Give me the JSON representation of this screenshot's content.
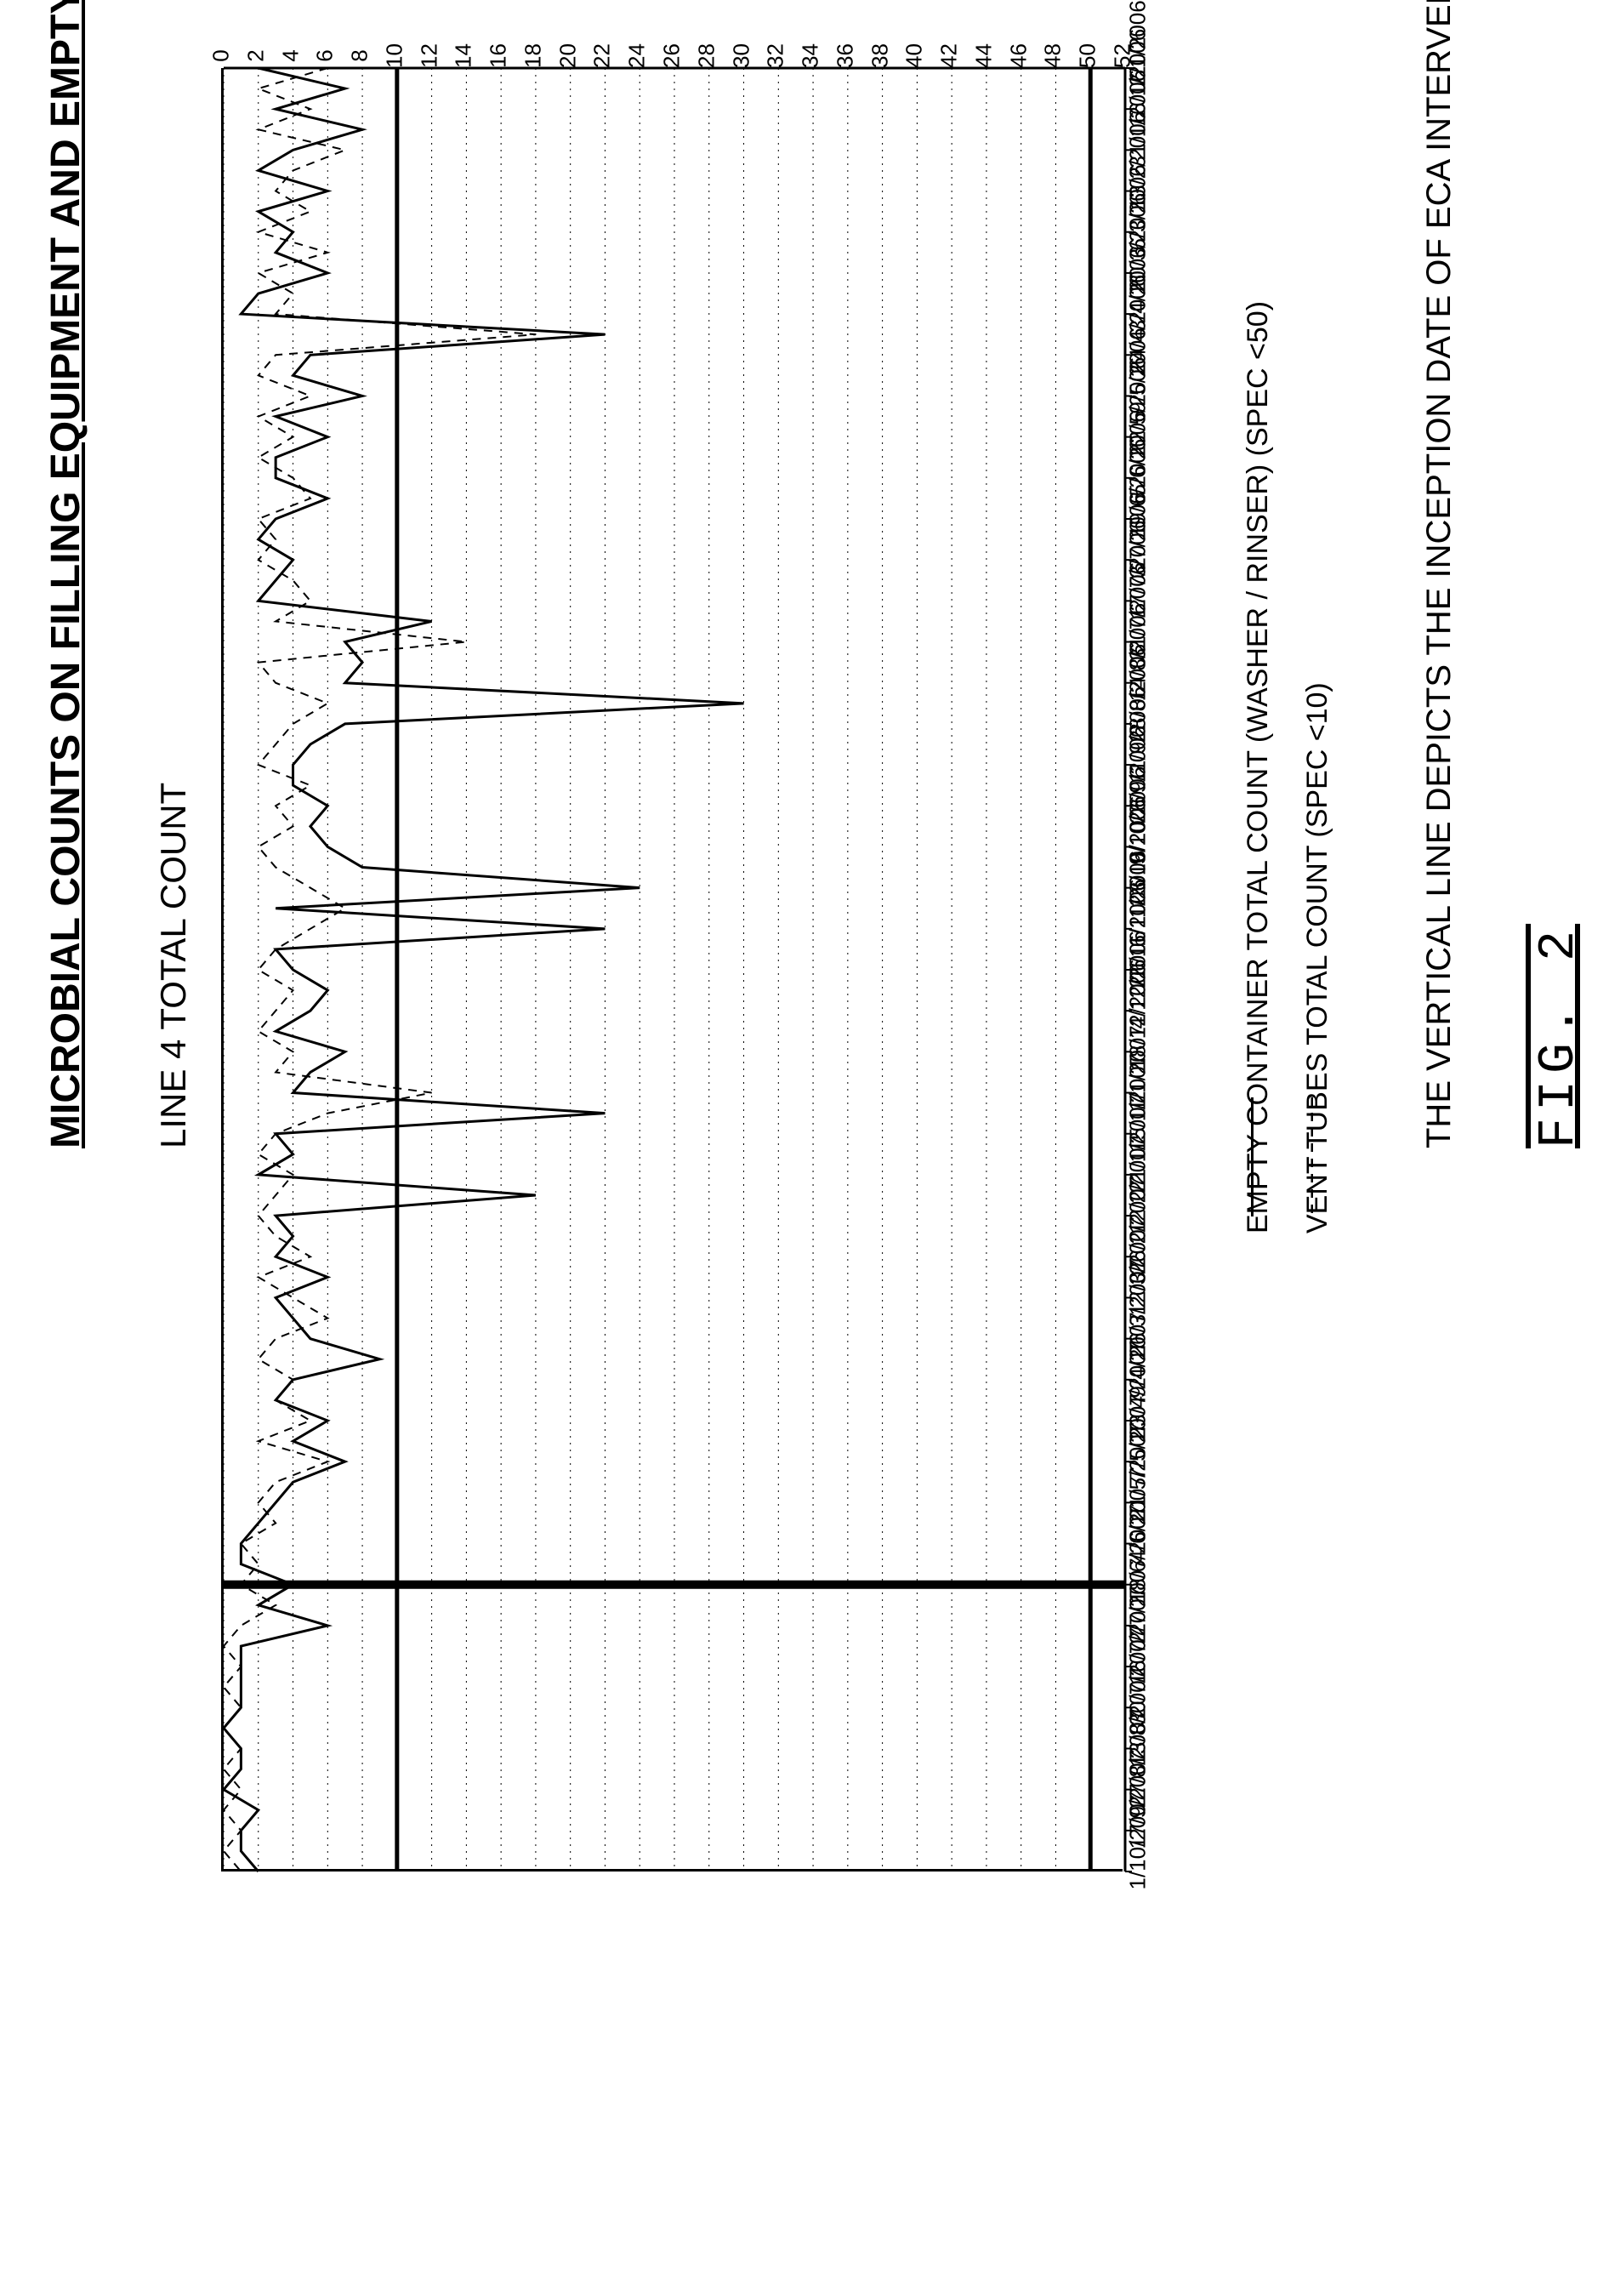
{
  "page_title": "MICROBIAL COUNTS ON FILLING EQUIPMENT AND EMPTY CONTAINERS VERSUS TIME",
  "chart": {
    "type": "line",
    "title": "LINE 4 TOTAL COUNT",
    "background_color": "#ffffff",
    "grid_color": "#000000",
    "grid_style": "dotted",
    "axis_color": "#000000",
    "line_width_axis": 3,
    "ylim": [
      0,
      52
    ],
    "ytick_step": 2,
    "y_ticks": [
      0,
      2,
      4,
      6,
      8,
      10,
      12,
      14,
      16,
      18,
      20,
      22,
      24,
      26,
      28,
      30,
      32,
      34,
      36,
      38,
      40,
      42,
      44,
      46,
      48,
      50,
      52
    ],
    "reference_lines": [
      {
        "y": 50,
        "color": "#000000",
        "width": 5
      },
      {
        "y": 10,
        "color": "#000000",
        "width": 5
      }
    ],
    "intervention_line": {
      "x_index": 37,
      "date": "4/6/2007",
      "color": "#000000",
      "width": 10
    },
    "x_labels": [
      "2/1/2006",
      "16/1/2006",
      "31/1/2006",
      "13/2/2006",
      "6/3/2006",
      "20/3/2006",
      "3/4/2006",
      "24/4/2006",
      "9/5/2006",
      "22/5/2006",
      "5/6/2006",
      "19/6/2006",
      "3/7/2006",
      "17/7/2006",
      "31/7/2006",
      "14/8/2006",
      "28/8/2006",
      "11/9/2006",
      "26/9/2006",
      "9/10/2006",
      "23/10/2006",
      "6/11/2006",
      "20/11/2006",
      "4/12/2006",
      "18/12/2006",
      "1/1/2007",
      "15/1/2007",
      "21/1/2007",
      "12/2/2007",
      "26/2/2007",
      "12/3/2007",
      "26/3/2007",
      "9/4/2007",
      "23/4/2007",
      "7/5/2007",
      "21/5/2007",
      "4/6/2007",
      "18/6/2007",
      "2/7/2007",
      "16/7/2007",
      "30/7/2007",
      "13/8/2007",
      "27/8/2007",
      "17/9/2007",
      "1/10/2007"
    ],
    "series": [
      {
        "name": "EMPTY CONTAINER TOTAL COUNT (WASHER / RINSER) (SPEC <50)",
        "color": "#000000",
        "dash": "solid",
        "line_width": 3,
        "values": [
          2,
          7,
          3,
          8,
          4,
          2,
          6,
          2,
          4,
          3,
          6,
          2,
          1,
          22,
          5,
          4,
          8,
          3,
          6,
          3,
          3,
          6,
          3,
          2,
          4,
          3,
          2,
          12,
          7,
          8,
          7,
          30,
          7,
          5,
          4,
          4,
          6,
          5,
          6,
          8,
          24,
          3,
          22,
          3,
          4,
          6,
          5,
          3,
          7,
          5,
          4,
          22,
          3,
          4,
          2,
          18,
          3,
          4,
          3,
          6,
          3,
          4,
          5,
          9,
          4,
          3,
          6,
          4,
          7,
          4,
          3,
          2,
          1,
          1,
          4,
          2,
          6,
          1,
          1,
          1,
          1,
          0,
          1,
          1,
          0,
          2,
          1,
          1,
          2
        ]
      },
      {
        "name": "VENT TUBES TOTAL COUNT (SPEC <10)",
        "color": "#000000",
        "dash": "dashed",
        "line_width": 2,
        "values": [
          6,
          2,
          5,
          2,
          7,
          4,
          3,
          5,
          2,
          6,
          2,
          4,
          3,
          18,
          3,
          2,
          5,
          2,
          4,
          2,
          4,
          5,
          2,
          3,
          2,
          4,
          5,
          3,
          14,
          2,
          3,
          6,
          4,
          3,
          2,
          5,
          3,
          4,
          2,
          3,
          5,
          7,
          5,
          3,
          2,
          4,
          3,
          2,
          4,
          3,
          12,
          6,
          3,
          2,
          4,
          3,
          2,
          3,
          5,
          2,
          4,
          6,
          3,
          2,
          4,
          3,
          5,
          2,
          6,
          3,
          2,
          3,
          1,
          2,
          1,
          3,
          1,
          0,
          1,
          0,
          1,
          0,
          1,
          0,
          1,
          0,
          1,
          0,
          1
        ]
      }
    ],
    "label_fontsize": 26,
    "title_fontsize": 42
  },
  "legend": {
    "items": [
      {
        "sample_style": "solid",
        "label": "EMPTY CONTAINER TOTAL COUNT (WASHER / RINSER) (SPEC <50)"
      },
      {
        "sample_style": "dashed",
        "label": "VENT TUBES TOTAL COUNT (SPEC <10)"
      }
    ],
    "fontsize": 34
  },
  "caption": "THE VERTICAL LINE DEPICTS THE INCEPTION DATE OF ECA INTERVENTION IN THE CIP PROGRAM",
  "figure_label": "FIG. 2"
}
